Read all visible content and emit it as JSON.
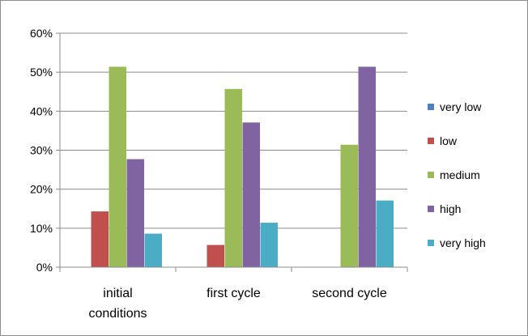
{
  "chart_data": {
    "type": "bar",
    "title": "",
    "xlabel": "",
    "ylabel": "",
    "categories": [
      [
        "initial",
        "conditions"
      ],
      [
        "first cycle"
      ],
      [
        "second cycle"
      ]
    ],
    "y_ticks": [
      "0%",
      "10%",
      "20%",
      "30%",
      "40%",
      "50%",
      "60%"
    ],
    "ylim": [
      0,
      60
    ],
    "grid": true,
    "legend_position": "right",
    "series": [
      {
        "name": "very low",
        "color": "#4f81bd",
        "values": [
          0,
          0,
          0
        ]
      },
      {
        "name": "low",
        "color": "#c0504d",
        "values": [
          14.3,
          5.7,
          0
        ]
      },
      {
        "name": "medium",
        "color": "#9bbb59",
        "values": [
          51.4,
          45.7,
          31.4
        ]
      },
      {
        "name": "high",
        "color": "#8064a2",
        "values": [
          27.7,
          37.1,
          51.4
        ]
      },
      {
        "name": "very high",
        "color": "#4bacc6",
        "values": [
          8.6,
          11.4,
          17.1
        ]
      }
    ]
  }
}
